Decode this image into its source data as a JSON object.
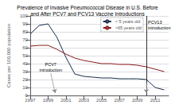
{
  "chart_data": {
    "type": "line",
    "title": "Prevalence of Invasive Pneumococcal Disease in U.S. Before\nand After PCV7 and PCV13 Vaccine Introductions",
    "ylabel": "Cases per 100,000 population",
    "x": [
      1997,
      1998,
      1999,
      2000,
      2001,
      2002,
      2003,
      2004,
      2005,
      2006,
      2007,
      2008,
      2009,
      2010,
      2011,
      2012
    ],
    "series": [
      {
        "name": "< 5 years old",
        "color": "#1a2e4a",
        "values": [
          77,
          88,
          90,
          73,
          48,
          27,
          24,
          23,
          22,
          22,
          21,
          21,
          21,
          20,
          10,
          7
        ]
      },
      {
        "name": ">65 years old",
        "color": "#8b1a1a",
        "values": [
          62,
          63,
          63,
          58,
          52,
          47,
          44,
          42,
          40,
          40,
          39,
          39,
          38,
          36,
          33,
          30
        ]
      }
    ],
    "xlim": [
      1997,
      2012.5
    ],
    "xticks": [
      1997,
      1999,
      2001,
      2003,
      2005,
      2007,
      2009,
      2011
    ],
    "ylim": [
      0,
      100
    ],
    "yticks": [
      0,
      10,
      20,
      30,
      40,
      50,
      60,
      70,
      80,
      90,
      100
    ],
    "grid": true,
    "legend": "upper right",
    "annotations": [
      {
        "text": "PCV7\nintroduction",
        "x": 1999.8,
        "y": 3,
        "text_x": 1999.3,
        "text_y": 28
      },
      {
        "text": "PCV13\nintroduction",
        "x": 2010.1,
        "y": 95
      }
    ],
    "vlines": [
      {
        "x": 2010.0,
        "arrow_from": 15,
        "arrow_to": 3
      }
    ]
  }
}
